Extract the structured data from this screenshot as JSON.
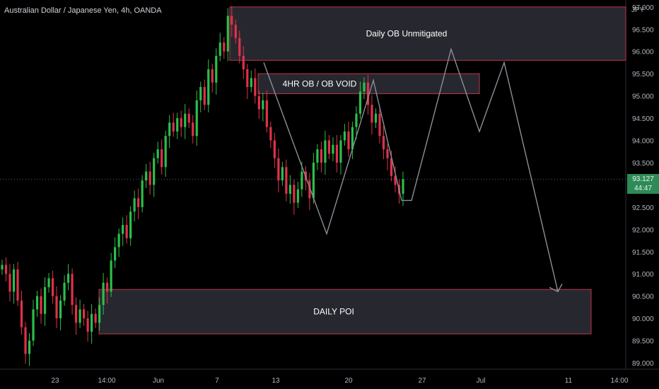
{
  "header": {
    "title": "Australian Dollar / Japanese Yen, 4h, OANDA"
  },
  "axis": {
    "currency": "JPY"
  },
  "colors": {
    "up": "#26a69a",
    "upBright": "#2bbf4a",
    "down": "#e0314b",
    "zoneFill": "#2a2a33",
    "zoneStroke": "#c0344a",
    "path": "#8a8f98"
  },
  "price_tag": {
    "price": "93.127",
    "timer": "44:47"
  },
  "chart_data": {
    "type": "candlestick",
    "title": "Australian Dollar / Japanese Yen, 4h, OANDA",
    "ylim": [
      88.9,
      97.2
    ],
    "y_ticks": [
      "97.000",
      "96.500",
      "96.000",
      "95.500",
      "95.000",
      "94.500",
      "94.000",
      "93.500",
      "93.000",
      "92.500",
      "92.000",
      "91.500",
      "91.000",
      "90.500",
      "90.000",
      "89.500",
      "89.000"
    ],
    "x_ticks": [
      "23",
      "14:00",
      "Jun",
      "7",
      "13",
      "20",
      "27",
      "Jul",
      "11",
      "14:00"
    ],
    "current_price": 93.127,
    "zones": [
      {
        "label": "Daily OB Unmitigated",
        "top": 97.0,
        "bottom": 95.8
      },
      {
        "label": "4HR OB / OB VOID",
        "top": 95.5,
        "bottom": 95.05
      },
      {
        "label": "DAILY POI",
        "top": 90.65,
        "bottom": 89.65
      }
    ],
    "projection": [
      92.65,
      96.05,
      94.2,
      95.75,
      90.6
    ],
    "drawn_path": [
      95.75,
      91.9,
      95.35,
      92.65
    ],
    "closes": [
      91.2,
      91.0,
      90.6,
      91.1,
      90.4,
      89.8,
      89.2,
      89.5,
      90.2,
      90.5,
      90.1,
      90.7,
      90.9,
      90.5,
      90.0,
      90.4,
      90.8,
      91.0,
      90.3,
      89.9,
      90.2,
      90.0,
      89.7,
      90.1,
      89.9,
      90.3,
      90.8,
      90.6,
      91.3,
      91.6,
      91.9,
      92.1,
      91.8,
      92.4,
      92.7,
      92.5,
      93.1,
      93.3,
      93.0,
      93.6,
      93.8,
      93.4,
      94.1,
      94.4,
      94.2,
      94.5,
      94.3,
      94.6,
      94.4,
      94.1,
      94.9,
      95.2,
      94.8,
      95.6,
      95.3,
      95.9,
      96.2,
      96.0,
      96.8,
      96.6,
      96.3,
      95.9,
      95.6,
      95.2,
      95.4,
      95.0,
      94.7,
      94.9,
      94.3,
      94.0,
      93.6,
      93.1,
      93.4,
      92.8,
      93.0,
      92.6,
      92.9,
      93.3,
      93.1,
      92.7,
      93.5,
      93.8,
      93.5,
      94.0,
      93.7,
      93.9,
      93.5,
      94.0,
      94.2,
      93.8,
      94.3,
      94.6,
      95.1,
      95.3,
      94.8,
      94.4,
      94.6,
      94.1,
      93.8,
      93.6,
      93.2,
      93.0,
      92.8,
      93.127
    ]
  }
}
